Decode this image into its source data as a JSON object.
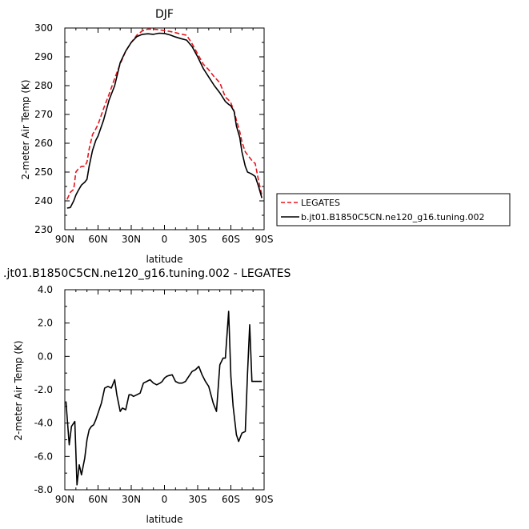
{
  "chart_data": [
    {
      "type": "line",
      "title": "DJF",
      "xlabel": "latitude",
      "ylabel": "2-meter Air Temp (K)",
      "x_tick_labels": [
        "90N",
        "60N",
        "30N",
        "0",
        "30S",
        "60S",
        "90S"
      ],
      "x_tick_values": [
        90,
        60,
        30,
        0,
        -30,
        -60,
        -90
      ],
      "y_tick_labels": [
        "230",
        "240",
        "250",
        "260",
        "270",
        "280",
        "290",
        "300"
      ],
      "y_tick_values": [
        230,
        240,
        250,
        260,
        270,
        280,
        290,
        300
      ],
      "xlim": [
        90,
        -90
      ],
      "ylim": [
        230,
        300
      ],
      "legend_placement": "right",
      "grid": false,
      "series": [
        {
          "name": "LEGATES",
          "color": "#e8141c",
          "dash": "dashed",
          "x": [
            88,
            85,
            82,
            80,
            78,
            75,
            72,
            70,
            68,
            65,
            62,
            60,
            55,
            50,
            45,
            40,
            35,
            30,
            25,
            20,
            15,
            10,
            5,
            0,
            -5,
            -10,
            -15,
            -20,
            -25,
            -30,
            -35,
            -40,
            -45,
            -50,
            -55,
            -58,
            -60,
            -63,
            -65,
            -68,
            -70,
            -73,
            -75,
            -78,
            -80,
            -82,
            -85,
            -88
          ],
          "y": [
            240.5,
            243,
            244,
            250,
            251,
            252,
            252,
            253.5,
            258,
            263,
            265,
            266.5,
            272,
            277,
            282.5,
            287.5,
            292,
            295,
            297.5,
            299,
            299.6,
            299.6,
            299.4,
            299.1,
            298.8,
            298.4,
            297.9,
            297.5,
            294.5,
            291,
            287.5,
            285.5,
            283,
            281,
            276,
            275,
            274,
            271,
            268,
            264,
            260.5,
            257,
            256,
            254.5,
            253.5,
            253,
            247,
            242
          ]
        },
        {
          "name": "b.jt01.B1850C5CN.ne120_g16.tuning.002",
          "color": "#000000",
          "dash": "solid",
          "x": [
            88,
            85,
            82,
            80,
            78,
            75,
            72,
            70,
            68,
            65,
            62,
            60,
            55,
            50,
            45,
            40,
            35,
            30,
            25,
            20,
            15,
            10,
            5,
            0,
            -5,
            -10,
            -15,
            -20,
            -25,
            -30,
            -35,
            -40,
            -45,
            -50,
            -55,
            -58,
            -60,
            -63,
            -65,
            -68,
            -70,
            -73,
            -75,
            -78,
            -80,
            -82,
            -85,
            -88
          ],
          "y": [
            237.5,
            237.7,
            240,
            242,
            243.5,
            245.5,
            246.5,
            247.5,
            252,
            257.5,
            261,
            262.5,
            268,
            275,
            280,
            288,
            292,
            295,
            297,
            297.8,
            298,
            297.8,
            298.2,
            298.1,
            297.6,
            296.9,
            296.3,
            295.8,
            293.5,
            290,
            286,
            283,
            280,
            277.5,
            274.5,
            273.5,
            273,
            271,
            266,
            262,
            257,
            252,
            250,
            249.5,
            249,
            248.5,
            245,
            241
          ]
        }
      ]
    },
    {
      "type": "line",
      "title": ".jt01.B1850C5CN.ne120_g16.tuning.002 - LEGATES",
      "xlabel": "latitude",
      "ylabel": "2-meter Air Temp (K)",
      "x_tick_labels": [
        "90N",
        "60N",
        "30N",
        "0",
        "30S",
        "60S",
        "90S"
      ],
      "x_tick_values": [
        90,
        60,
        30,
        0,
        -30,
        -60,
        -90
      ],
      "y_tick_labels": [
        "-8.0",
        "-6.0",
        "-4.0",
        "-2.0",
        "0.0",
        "2.0",
        "4.0"
      ],
      "y_tick_values": [
        -8,
        -6,
        -4,
        -2,
        0,
        2,
        4
      ],
      "xlim": [
        90,
        -90
      ],
      "ylim": [
        -8,
        4
      ],
      "grid": false,
      "series": [
        {
          "color": "#000000",
          "dash": "solid",
          "x": [
            89,
            86,
            84,
            81,
            79,
            77,
            75,
            72,
            70,
            68,
            66,
            64,
            62,
            60,
            57,
            54,
            51,
            48,
            45,
            43,
            40,
            38,
            35,
            32,
            30,
            28,
            25,
            22,
            19,
            16,
            13,
            10,
            7,
            4,
            2,
            0,
            -2,
            -4,
            -7,
            -10,
            -13,
            -16,
            -19,
            -22,
            -25,
            -28,
            -31,
            -34,
            -37,
            -40,
            -44,
            -47,
            -50,
            -53,
            -55,
            -58,
            -60,
            -62,
            -65,
            -67,
            -70,
            -73,
            -75,
            -77,
            -79,
            -81,
            -84,
            -86,
            -88
          ],
          "y": [
            -2.7,
            -5.3,
            -4.2,
            -3.9,
            -7.7,
            -6.5,
            -7.1,
            -6.1,
            -5.0,
            -4.4,
            -4.2,
            -4.1,
            -3.8,
            -3.4,
            -2.8,
            -1.9,
            -1.8,
            -1.9,
            -1.4,
            -2.3,
            -3.3,
            -3.1,
            -3.2,
            -2.3,
            -2.3,
            -2.4,
            -2.3,
            -2.2,
            -1.6,
            -1.5,
            -1.4,
            -1.6,
            -1.7,
            -1.6,
            -1.5,
            -1.3,
            -1.2,
            -1.15,
            -1.1,
            -1.5,
            -1.6,
            -1.6,
            -1.5,
            -1.2,
            -0.9,
            -0.8,
            -0.6,
            -1.1,
            -1.5,
            -1.8,
            -2.8,
            -3.3,
            -0.5,
            -0.1,
            -0.1,
            2.7,
            -1.2,
            -3.0,
            -4.7,
            -5.1,
            -4.6,
            -4.5,
            -1.0,
            1.9,
            -1.5,
            -1.5,
            -1.5,
            -1.5,
            -1.5
          ]
        }
      ]
    }
  ]
}
